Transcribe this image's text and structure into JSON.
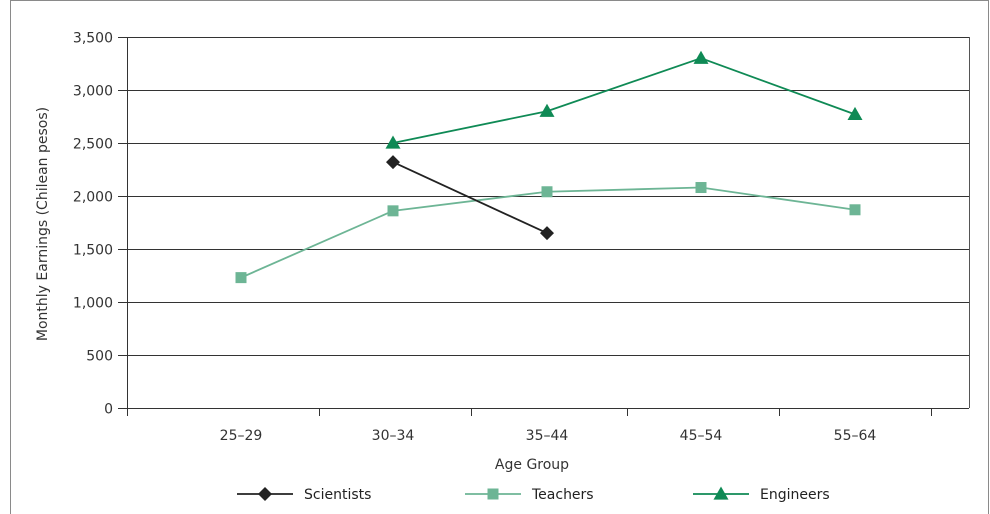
{
  "chart_data": {
    "type": "line",
    "categories": [
      "25–29",
      "30–34",
      "35–44",
      "45–54",
      "55–64"
    ],
    "series": [
      {
        "name": "Scientists",
        "color": "#222222",
        "marker": "diamond",
        "values": [
          null,
          2320,
          1650,
          null,
          null
        ]
      },
      {
        "name": "Teachers",
        "color": "#6db595",
        "marker": "square",
        "values": [
          1230,
          1860,
          2040,
          2080,
          1870
        ]
      },
      {
        "name": "Engineers",
        "color": "#0f8a55",
        "marker": "triangle",
        "values": [
          null,
          2500,
          2800,
          3300,
          2770
        ]
      }
    ],
    "xlabel": "Age Group",
    "ylabel": "Monthly Earnings (Chilean pesos)",
    "ylim": [
      0,
      3500
    ],
    "yticks": [
      0,
      500,
      1000,
      1500,
      2000,
      2500,
      3000,
      3500
    ],
    "ytick_labels": [
      "0",
      "500",
      "1,000",
      "1,500",
      "2,000",
      "2,500",
      "3,000",
      "3,500"
    ],
    "grid": true,
    "legend_position": "bottom"
  }
}
